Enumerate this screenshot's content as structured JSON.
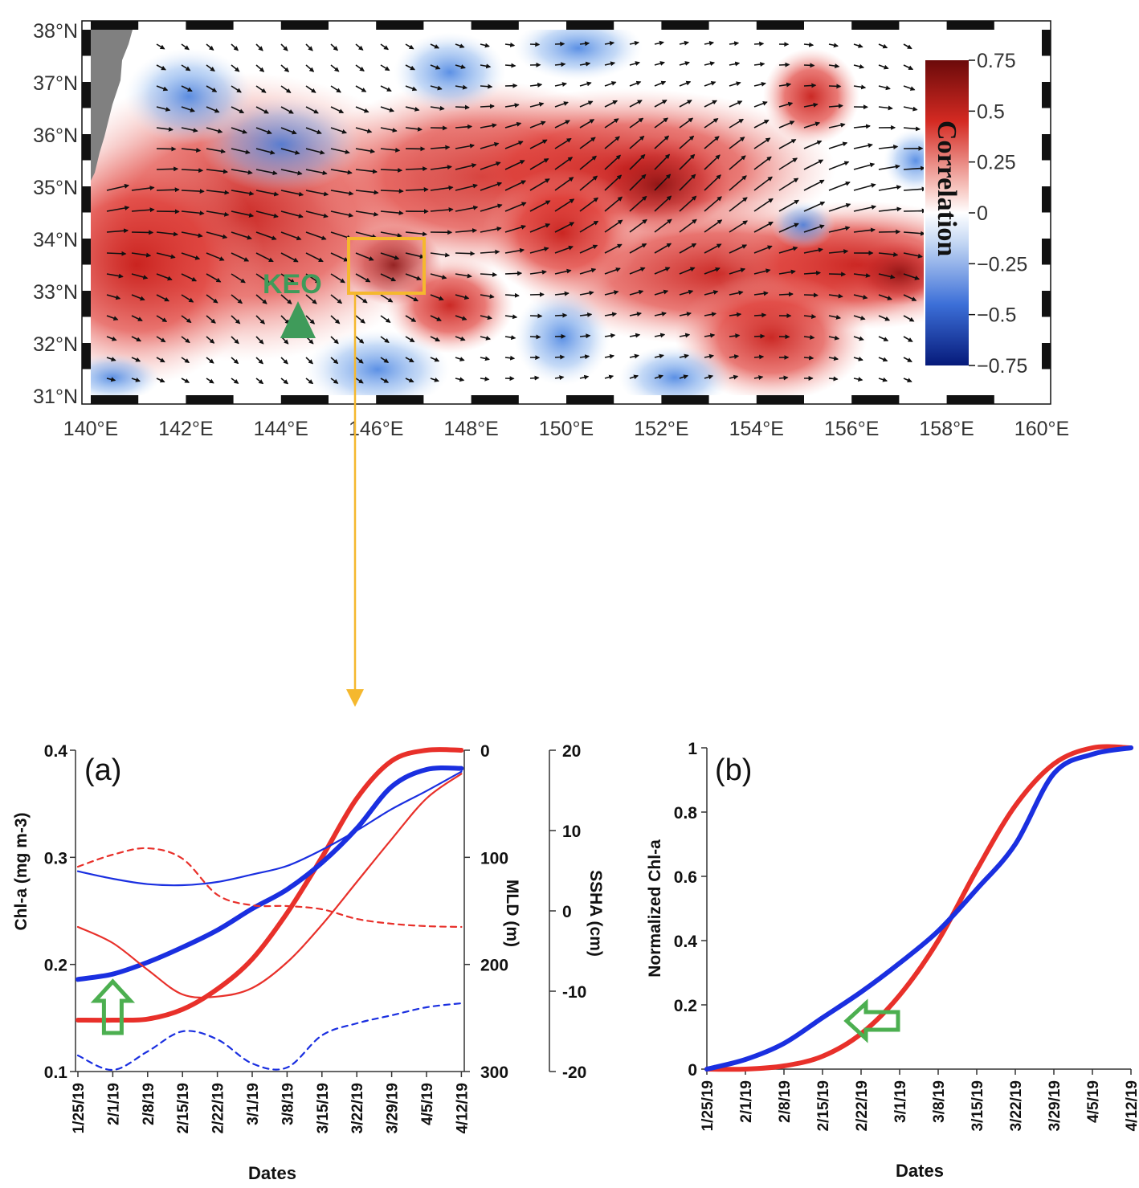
{
  "map": {
    "lat_labels": [
      "38°N",
      "37°N",
      "36°N",
      "35°N",
      "34°N",
      "33°N",
      "32°N",
      "31°N"
    ],
    "lon_labels": [
      "140°E",
      "142°E",
      "144°E",
      "146°E",
      "148°E",
      "150°E",
      "152°E",
      "154°E",
      "156°E",
      "158°E",
      "160°E"
    ],
    "station_label": "KEO",
    "colorbar": {
      "title": "Correlation",
      "tick_labels": [
        "0.75",
        "0.5",
        "0.25",
        "0",
        "−0.25",
        "−0.5",
        "−0.75"
      ],
      "colors": {
        "high": "#6b0a0a",
        "mid": "#ffffff",
        "low": "#061a7a"
      }
    },
    "box_color": "#f5b82e",
    "station_color": "#3f9b5a",
    "land_color": "#808080"
  },
  "chart_data": [
    {
      "type": "line",
      "panel_label": "(a)",
      "xlabel": "Dates",
      "categories": [
        "1/25/19",
        "2/1/19",
        "2/8/19",
        "2/15/19",
        "2/22/19",
        "3/1/19",
        "3/8/19",
        "3/15/19",
        "3/22/19",
        "3/29/19",
        "4/5/19",
        "4/12/19"
      ],
      "axes": {
        "left": {
          "label": "Chl-a (mg m-3)",
          "ylim": [
            0.1,
            0.4
          ],
          "ticks": [
            "0.4",
            "0.3",
            "0.2",
            "0.1"
          ]
        },
        "right1": {
          "label": "MLD (m)",
          "ylim": [
            0,
            300
          ],
          "inverted": true,
          "ticks": [
            "0",
            "100",
            "200",
            "300"
          ]
        },
        "right2": {
          "label": "SSHA (cm)",
          "ylim": [
            -20,
            20
          ],
          "ticks": [
            "20",
            "10",
            "0",
            "-10",
            "-20"
          ]
        }
      },
      "series": [
        {
          "axis": "left",
          "color": "#e8302a",
          "width": "thick",
          "dash": false,
          "x": [
            0,
            1,
            2,
            3,
            4,
            5,
            6,
            7,
            8,
            9,
            10,
            11
          ],
          "values": [
            0.148,
            0.148,
            0.149,
            0.158,
            0.177,
            0.205,
            0.248,
            0.3,
            0.355,
            0.39,
            0.4,
            0.4
          ]
        },
        {
          "axis": "left",
          "color": "#1a2fe0",
          "width": "thick",
          "dash": false,
          "x": [
            0,
            1,
            2,
            3,
            4,
            5,
            6,
            7,
            8,
            9,
            10,
            11
          ],
          "values": [
            0.186,
            0.191,
            0.202,
            0.216,
            0.232,
            0.252,
            0.27,
            0.295,
            0.327,
            0.366,
            0.382,
            0.383
          ]
        },
        {
          "axis": "right1",
          "color": "#e8302a",
          "width": "thin",
          "dash": false,
          "x": [
            0,
            1,
            2,
            3,
            4,
            5,
            6,
            7,
            8,
            9,
            10,
            11
          ],
          "values": [
            165,
            180,
            205,
            228,
            230,
            222,
            198,
            163,
            123,
            83,
            45,
            22
          ]
        },
        {
          "axis": "right1",
          "color": "#1a2fe0",
          "width": "thin",
          "dash": false,
          "x": [
            0,
            1,
            2,
            3,
            4,
            5,
            6,
            7,
            8,
            9,
            10,
            11
          ],
          "values": [
            113,
            120,
            125,
            126,
            123,
            116,
            108,
            93,
            75,
            55,
            38,
            20
          ]
        },
        {
          "axis": "right2",
          "color": "#e8302a",
          "width": "thin",
          "dash": true,
          "x": [
            0,
            1,
            2,
            3,
            4,
            5,
            6,
            7,
            8,
            9,
            10,
            11
          ],
          "values": [
            5.5,
            7.0,
            7.8,
            6.5,
            2.0,
            0.7,
            0.6,
            0.2,
            -1.0,
            -1.6,
            -1.9,
            -2.0
          ]
        },
        {
          "axis": "right2",
          "color": "#1a2fe0",
          "width": "thin",
          "dash": true,
          "x": [
            0,
            1,
            2,
            3,
            4,
            5,
            6,
            7,
            8,
            9,
            10,
            11
          ],
          "values": [
            -18.0,
            -19.8,
            -17.5,
            -15.0,
            -16.0,
            -19.0,
            -19.5,
            -15.5,
            -14.0,
            -13.0,
            -12.0,
            -11.5
          ]
        }
      ],
      "annotation": {
        "type": "arrow-up",
        "color": "#4caf50",
        "x": 1,
        "y": 0.19
      }
    },
    {
      "type": "line",
      "panel_label": "(b)",
      "xlabel": "Dates",
      "ylabel": "Normalized Chl-a",
      "ylim": [
        0,
        1
      ],
      "yticks": [
        "1",
        "0.8",
        "0.6",
        "0.4",
        "0.2",
        "0"
      ],
      "categories": [
        "1/25/19",
        "2/1/19",
        "2/8/19",
        "2/15/19",
        "2/22/19",
        "3/1/19",
        "3/8/19",
        "3/15/19",
        "3/22/19",
        "3/29/19",
        "4/5/19",
        "4/12/19"
      ],
      "series": [
        {
          "color": "#e8302a",
          "values": [
            0.0,
            0.0,
            0.01,
            0.04,
            0.11,
            0.23,
            0.4,
            0.62,
            0.82,
            0.95,
            1.0,
            1.0
          ]
        },
        {
          "color": "#1a2fe0",
          "values": [
            0.0,
            0.03,
            0.08,
            0.16,
            0.24,
            0.33,
            0.43,
            0.56,
            0.7,
            0.92,
            0.98,
            1.0
          ]
        }
      ],
      "annotation": {
        "type": "arrow-left",
        "color": "#4caf50",
        "x": 4,
        "y": 0.15
      }
    }
  ]
}
